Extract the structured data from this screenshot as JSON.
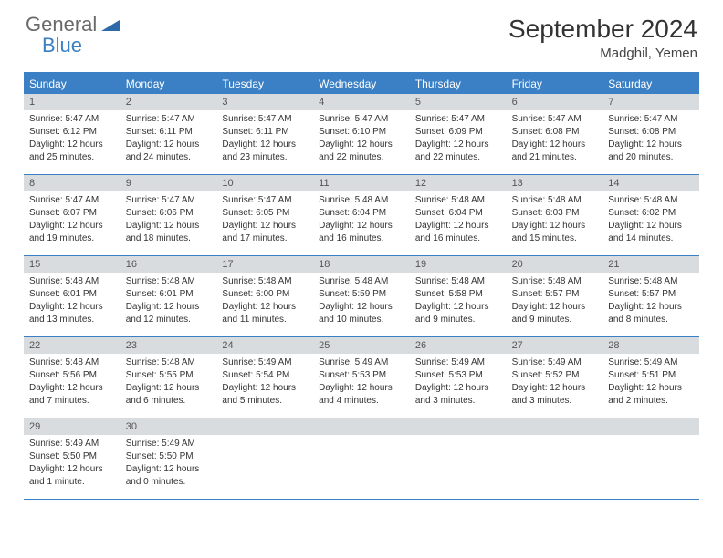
{
  "logo": {
    "general": "General",
    "blue": "Blue"
  },
  "header": {
    "month_title": "September 2024",
    "location": "Madghil, Yemen"
  },
  "colors": {
    "accent": "#3b7fc4",
    "daynum_bg": "#d9dcdf",
    "logo_gray": "#6a6a6a",
    "logo_blue": "#3b7fc4"
  },
  "weekdays": [
    "Sunday",
    "Monday",
    "Tuesday",
    "Wednesday",
    "Thursday",
    "Friday",
    "Saturday"
  ],
  "days": [
    {
      "n": "1",
      "sunrise": "Sunrise: 5:47 AM",
      "sunset": "Sunset: 6:12 PM",
      "d1": "Daylight: 12 hours",
      "d2": "and 25 minutes."
    },
    {
      "n": "2",
      "sunrise": "Sunrise: 5:47 AM",
      "sunset": "Sunset: 6:11 PM",
      "d1": "Daylight: 12 hours",
      "d2": "and 24 minutes."
    },
    {
      "n": "3",
      "sunrise": "Sunrise: 5:47 AM",
      "sunset": "Sunset: 6:11 PM",
      "d1": "Daylight: 12 hours",
      "d2": "and 23 minutes."
    },
    {
      "n": "4",
      "sunrise": "Sunrise: 5:47 AM",
      "sunset": "Sunset: 6:10 PM",
      "d1": "Daylight: 12 hours",
      "d2": "and 22 minutes."
    },
    {
      "n": "5",
      "sunrise": "Sunrise: 5:47 AM",
      "sunset": "Sunset: 6:09 PM",
      "d1": "Daylight: 12 hours",
      "d2": "and 22 minutes."
    },
    {
      "n": "6",
      "sunrise": "Sunrise: 5:47 AM",
      "sunset": "Sunset: 6:08 PM",
      "d1": "Daylight: 12 hours",
      "d2": "and 21 minutes."
    },
    {
      "n": "7",
      "sunrise": "Sunrise: 5:47 AM",
      "sunset": "Sunset: 6:08 PM",
      "d1": "Daylight: 12 hours",
      "d2": "and 20 minutes."
    },
    {
      "n": "8",
      "sunrise": "Sunrise: 5:47 AM",
      "sunset": "Sunset: 6:07 PM",
      "d1": "Daylight: 12 hours",
      "d2": "and 19 minutes."
    },
    {
      "n": "9",
      "sunrise": "Sunrise: 5:47 AM",
      "sunset": "Sunset: 6:06 PM",
      "d1": "Daylight: 12 hours",
      "d2": "and 18 minutes."
    },
    {
      "n": "10",
      "sunrise": "Sunrise: 5:47 AM",
      "sunset": "Sunset: 6:05 PM",
      "d1": "Daylight: 12 hours",
      "d2": "and 17 minutes."
    },
    {
      "n": "11",
      "sunrise": "Sunrise: 5:48 AM",
      "sunset": "Sunset: 6:04 PM",
      "d1": "Daylight: 12 hours",
      "d2": "and 16 minutes."
    },
    {
      "n": "12",
      "sunrise": "Sunrise: 5:48 AM",
      "sunset": "Sunset: 6:04 PM",
      "d1": "Daylight: 12 hours",
      "d2": "and 16 minutes."
    },
    {
      "n": "13",
      "sunrise": "Sunrise: 5:48 AM",
      "sunset": "Sunset: 6:03 PM",
      "d1": "Daylight: 12 hours",
      "d2": "and 15 minutes."
    },
    {
      "n": "14",
      "sunrise": "Sunrise: 5:48 AM",
      "sunset": "Sunset: 6:02 PM",
      "d1": "Daylight: 12 hours",
      "d2": "and 14 minutes."
    },
    {
      "n": "15",
      "sunrise": "Sunrise: 5:48 AM",
      "sunset": "Sunset: 6:01 PM",
      "d1": "Daylight: 12 hours",
      "d2": "and 13 minutes."
    },
    {
      "n": "16",
      "sunrise": "Sunrise: 5:48 AM",
      "sunset": "Sunset: 6:01 PM",
      "d1": "Daylight: 12 hours",
      "d2": "and 12 minutes."
    },
    {
      "n": "17",
      "sunrise": "Sunrise: 5:48 AM",
      "sunset": "Sunset: 6:00 PM",
      "d1": "Daylight: 12 hours",
      "d2": "and 11 minutes."
    },
    {
      "n": "18",
      "sunrise": "Sunrise: 5:48 AM",
      "sunset": "Sunset: 5:59 PM",
      "d1": "Daylight: 12 hours",
      "d2": "and 10 minutes."
    },
    {
      "n": "19",
      "sunrise": "Sunrise: 5:48 AM",
      "sunset": "Sunset: 5:58 PM",
      "d1": "Daylight: 12 hours",
      "d2": "and 9 minutes."
    },
    {
      "n": "20",
      "sunrise": "Sunrise: 5:48 AM",
      "sunset": "Sunset: 5:57 PM",
      "d1": "Daylight: 12 hours",
      "d2": "and 9 minutes."
    },
    {
      "n": "21",
      "sunrise": "Sunrise: 5:48 AM",
      "sunset": "Sunset: 5:57 PM",
      "d1": "Daylight: 12 hours",
      "d2": "and 8 minutes."
    },
    {
      "n": "22",
      "sunrise": "Sunrise: 5:48 AM",
      "sunset": "Sunset: 5:56 PM",
      "d1": "Daylight: 12 hours",
      "d2": "and 7 minutes."
    },
    {
      "n": "23",
      "sunrise": "Sunrise: 5:48 AM",
      "sunset": "Sunset: 5:55 PM",
      "d1": "Daylight: 12 hours",
      "d2": "and 6 minutes."
    },
    {
      "n": "24",
      "sunrise": "Sunrise: 5:49 AM",
      "sunset": "Sunset: 5:54 PM",
      "d1": "Daylight: 12 hours",
      "d2": "and 5 minutes."
    },
    {
      "n": "25",
      "sunrise": "Sunrise: 5:49 AM",
      "sunset": "Sunset: 5:53 PM",
      "d1": "Daylight: 12 hours",
      "d2": "and 4 minutes."
    },
    {
      "n": "26",
      "sunrise": "Sunrise: 5:49 AM",
      "sunset": "Sunset: 5:53 PM",
      "d1": "Daylight: 12 hours",
      "d2": "and 3 minutes."
    },
    {
      "n": "27",
      "sunrise": "Sunrise: 5:49 AM",
      "sunset": "Sunset: 5:52 PM",
      "d1": "Daylight: 12 hours",
      "d2": "and 3 minutes."
    },
    {
      "n": "28",
      "sunrise": "Sunrise: 5:49 AM",
      "sunset": "Sunset: 5:51 PM",
      "d1": "Daylight: 12 hours",
      "d2": "and 2 minutes."
    },
    {
      "n": "29",
      "sunrise": "Sunrise: 5:49 AM",
      "sunset": "Sunset: 5:50 PM",
      "d1": "Daylight: 12 hours",
      "d2": "and 1 minute."
    },
    {
      "n": "30",
      "sunrise": "Sunrise: 5:49 AM",
      "sunset": "Sunset: 5:50 PM",
      "d1": "Daylight: 12 hours",
      "d2": "and 0 minutes."
    }
  ]
}
